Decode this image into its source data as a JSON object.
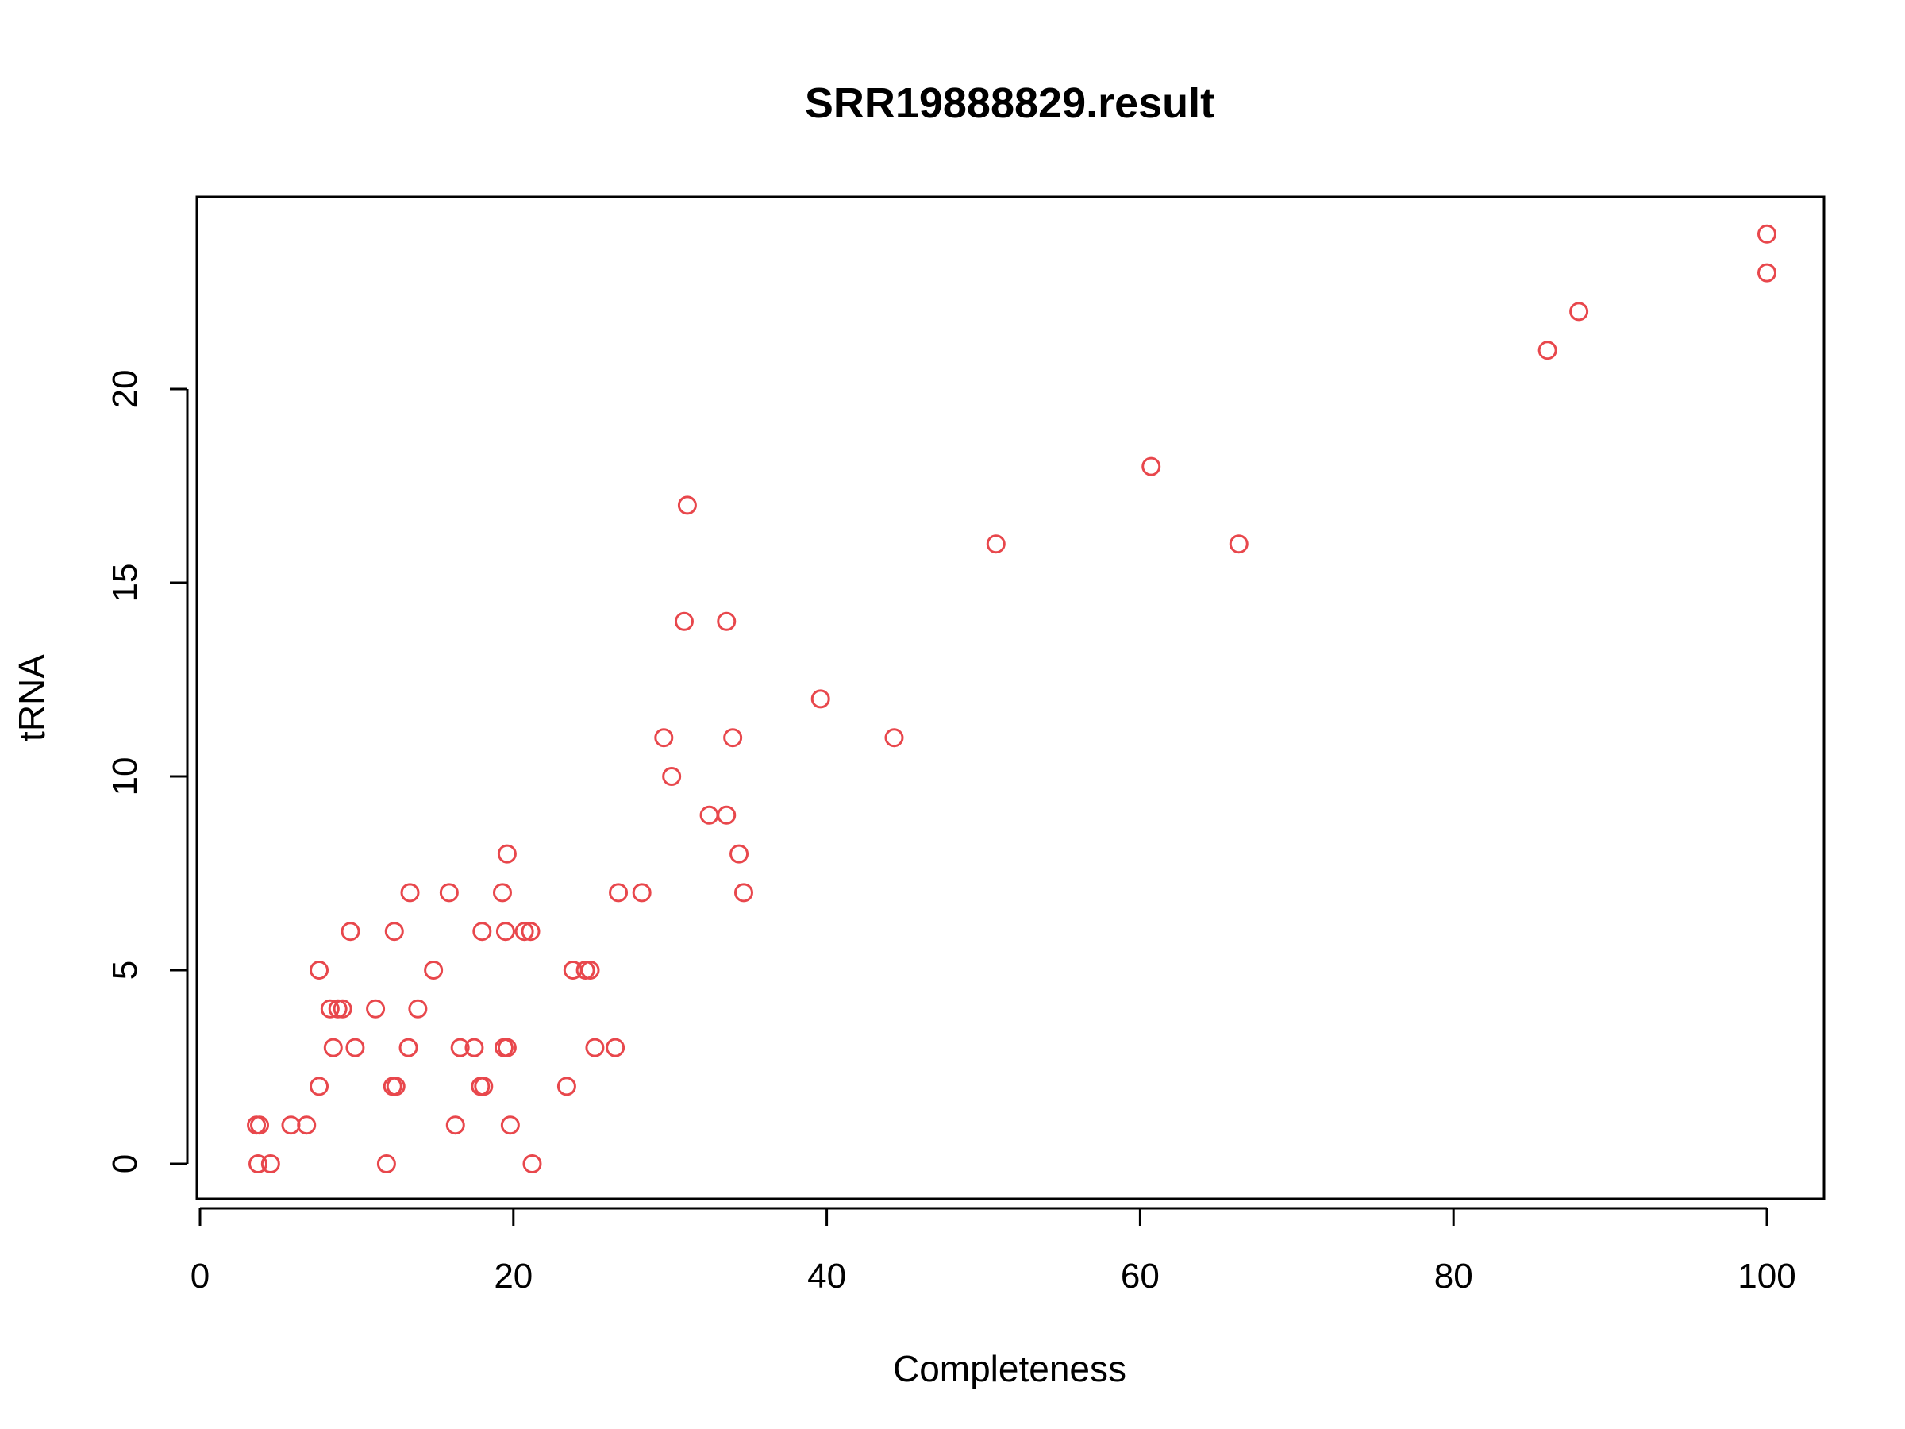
{
  "chart_data": {
    "type": "scatter",
    "title": "SRR19888829.result",
    "xlabel": "Completeness",
    "ylabel": "tRNA",
    "xlim": [
      0,
      104
    ],
    "ylim": [
      0,
      24
    ],
    "x_ticks": [
      0,
      20,
      40,
      60,
      80,
      100
    ],
    "y_ticks": [
      0,
      5,
      10,
      15,
      20
    ],
    "grid": false,
    "legend": "none",
    "point_color": "#e8474c",
    "series": [
      {
        "points": [
          [
            100,
            24
          ],
          [
            100,
            23
          ],
          [
            88,
            22
          ],
          [
            86,
            21
          ],
          [
            60.7,
            18
          ],
          [
            50.8,
            16
          ],
          [
            66.3,
            16
          ],
          [
            31.1,
            17
          ],
          [
            30.9,
            14
          ],
          [
            33.6,
            14
          ],
          [
            39.6,
            12
          ],
          [
            29.6,
            11
          ],
          [
            34,
            11
          ],
          [
            44.3,
            11
          ],
          [
            30.1,
            10
          ],
          [
            32.5,
            9
          ],
          [
            33.6,
            9
          ],
          [
            19.6,
            8
          ],
          [
            34.4,
            8
          ],
          [
            13.4,
            7
          ],
          [
            15.9,
            7
          ],
          [
            19.3,
            7
          ],
          [
            26.7,
            7
          ],
          [
            28.2,
            7
          ],
          [
            34.7,
            7
          ],
          [
            9.6,
            6
          ],
          [
            12.4,
            6
          ],
          [
            18,
            6
          ],
          [
            19.5,
            6
          ],
          [
            20.7,
            6
          ],
          [
            21.1,
            6
          ],
          [
            7.6,
            5
          ],
          [
            14.9,
            5
          ],
          [
            23.8,
            5
          ],
          [
            24.6,
            5
          ],
          [
            24.9,
            5
          ],
          [
            8.3,
            4
          ],
          [
            8.8,
            4
          ],
          [
            9.1,
            4
          ],
          [
            11.2,
            4
          ],
          [
            13.9,
            4
          ],
          [
            8.5,
            3
          ],
          [
            9.9,
            3
          ],
          [
            13.3,
            3
          ],
          [
            16.6,
            3
          ],
          [
            17.5,
            3
          ],
          [
            19.4,
            3
          ],
          [
            19.6,
            3
          ],
          [
            25.2,
            3
          ],
          [
            26.5,
            3
          ],
          [
            7.6,
            2
          ],
          [
            12.3,
            2
          ],
          [
            12.5,
            2
          ],
          [
            17.9,
            2
          ],
          [
            18.1,
            2
          ],
          [
            23.4,
            2
          ],
          [
            3.6,
            1
          ],
          [
            3.8,
            1
          ],
          [
            5.8,
            1
          ],
          [
            6.8,
            1
          ],
          [
            16.3,
            1
          ],
          [
            19.8,
            1
          ],
          [
            3.7,
            0
          ],
          [
            4.5,
            0
          ],
          [
            11.9,
            0
          ],
          [
            21.2,
            0
          ]
        ]
      }
    ]
  }
}
